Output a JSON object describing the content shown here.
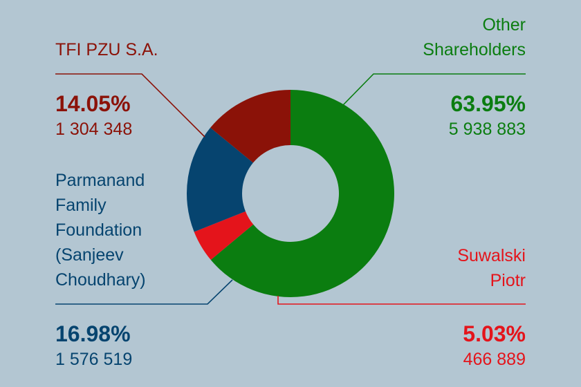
{
  "chart_data": {
    "type": "pie",
    "variant": "donut",
    "slices": [
      {
        "label": "Other Shareholders",
        "percent": "63.95%",
        "value": 63.95,
        "count": "5 938 883",
        "color": "#0b7d10"
      },
      {
        "label": "Suwalski Piotr",
        "percent": "5.03%",
        "value": 5.03,
        "count": "466 889",
        "color": "#e4141b"
      },
      {
        "label": "Parmanand Family Foundation (Sanjeev Choudhary)",
        "percent": "16.98%",
        "value": 16.98,
        "count": "1 576 519",
        "color": "#06446f"
      },
      {
        "label": "TFI PZU S.A.",
        "percent": "14.05%",
        "percent_label": "14.05%",
        "value": 14.05,
        "count": "1 304 348",
        "color": "#8b1208"
      }
    ]
  },
  "labels": {
    "tfi": {
      "name": "TFI PZU S.A.",
      "pct": "14.05%",
      "count": "1 304 348"
    },
    "other": {
      "name_line1": "Other",
      "name_line2": "Shareholders",
      "pct": "63.95%",
      "count": "5 938 883"
    },
    "parmanand": {
      "line1": "Parmanand",
      "line2": "Family",
      "line3": "Foundation",
      "line4": "(Sanjeev",
      "line5": "Choudhary)",
      "pct": "16.98%",
      "count": "1 576 519"
    },
    "suwalski": {
      "line1": "Suwalski",
      "line2": "Piotr",
      "pct": "5.03%",
      "count": "466 889"
    }
  },
  "colors": {
    "background": "#b3c6d2",
    "other": "#0b7d10",
    "suwalski": "#e4141b",
    "parmanand": "#06446f",
    "tfi": "#8b1208"
  }
}
